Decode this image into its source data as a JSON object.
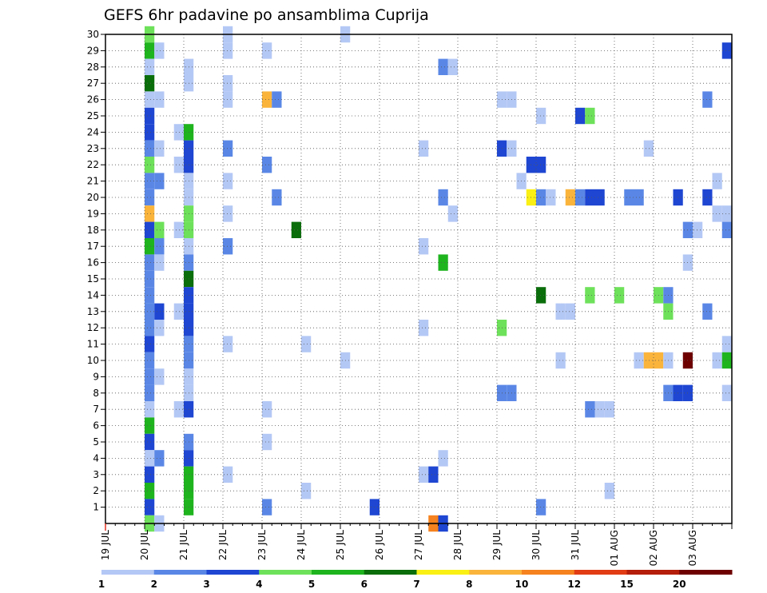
{
  "chart_data": {
    "type": "heatmap",
    "title": "GEFS 6hr padavine po ansamblima Cuprija",
    "x_start": "2021-07-19 00:00",
    "x_step_hours": 6,
    "x_tick_labels": [
      "19 JUL",
      "20 JUL",
      "21 JUL",
      "22 JUL",
      "23 JUL",
      "24 JUL",
      "25 JUL",
      "26 JUL",
      "27 JUL",
      "28 JUL",
      "29 JUL",
      "30 JUL",
      "31 JUL",
      "01 AUG",
      "02 AUG",
      "03 AUG"
    ],
    "y_tick_labels": [
      "1",
      "2",
      "3",
      "4",
      "5",
      "6",
      "7",
      "8",
      "9",
      "10",
      "11",
      "12",
      "13",
      "14",
      "15",
      "16",
      "17",
      "18",
      "19",
      "20",
      "21",
      "22",
      "23",
      "24",
      "25",
      "26",
      "27",
      "28",
      "29",
      "30"
    ],
    "ylim": [
      0,
      30
    ],
    "grid": true,
    "colorbar": {
      "position": "bottom",
      "levels": [
        1,
        2,
        3,
        4,
        5,
        6,
        7,
        8,
        10,
        12,
        15,
        20
      ],
      "labels": [
        "1",
        "2",
        "3",
        "4",
        "5",
        "6",
        "7",
        "8",
        "10",
        "12",
        "15",
        "20"
      ],
      "colors": [
        "#b4c8f5",
        "#5a87e6",
        "#1e46d2",
        "#6ee15a",
        "#1eb41e",
        "#0a6e0a",
        "#faf014",
        "#fab43c",
        "#f5821e",
        "#e13c14",
        "#b41e0a",
        "#6e0000"
      ]
    },
    "series_note": "cells: [time_index_from_x_start (6h steps), ensemble_member, color_class_index]",
    "cells": [
      [
        4,
        30,
        3
      ],
      [
        4,
        29,
        4
      ],
      [
        4,
        28,
        0
      ],
      [
        4,
        27,
        5
      ],
      [
        4,
        26,
        0
      ],
      [
        4,
        25,
        2
      ],
      [
        4,
        24,
        2
      ],
      [
        4,
        23,
        1
      ],
      [
        4,
        22,
        3
      ],
      [
        4,
        21,
        1
      ],
      [
        4,
        20,
        1
      ],
      [
        4,
        19,
        7
      ],
      [
        4,
        18,
        2
      ],
      [
        4,
        17,
        4
      ],
      [
        4,
        16,
        1
      ],
      [
        4,
        15,
        1
      ],
      [
        4,
        14,
        1
      ],
      [
        4,
        13,
        1
      ],
      [
        4,
        12,
        1
      ],
      [
        4,
        11,
        2
      ],
      [
        4,
        10,
        1
      ],
      [
        4,
        9,
        1
      ],
      [
        4,
        8,
        1
      ],
      [
        4,
        7,
        0
      ],
      [
        4,
        6,
        4
      ],
      [
        4,
        5,
        2
      ],
      [
        4,
        4,
        0
      ],
      [
        4,
        3,
        2
      ],
      [
        4,
        2,
        4
      ],
      [
        4,
        1,
        2
      ],
      [
        4,
        0,
        3
      ],
      [
        5,
        29,
        0
      ],
      [
        5,
        26,
        0
      ],
      [
        5,
        23,
        0
      ],
      [
        5,
        21,
        1
      ],
      [
        5,
        18,
        3
      ],
      [
        5,
        17,
        1
      ],
      [
        5,
        16,
        0
      ],
      [
        5,
        13,
        2
      ],
      [
        5,
        12,
        0
      ],
      [
        5,
        9,
        0
      ],
      [
        5,
        4,
        1
      ],
      [
        5,
        0,
        0
      ],
      [
        7,
        24,
        0
      ],
      [
        7,
        22,
        0
      ],
      [
        7,
        18,
        0
      ],
      [
        7,
        13,
        0
      ],
      [
        7,
        7,
        0
      ],
      [
        8,
        28,
        0
      ],
      [
        8,
        27,
        0
      ],
      [
        8,
        24,
        4
      ],
      [
        8,
        23,
        2
      ],
      [
        8,
        22,
        2
      ],
      [
        8,
        21,
        0
      ],
      [
        8,
        20,
        0
      ],
      [
        8,
        19,
        3
      ],
      [
        8,
        18,
        3
      ],
      [
        8,
        17,
        0
      ],
      [
        8,
        16,
        1
      ],
      [
        8,
        15,
        5
      ],
      [
        8,
        14,
        2
      ],
      [
        8,
        13,
        2
      ],
      [
        8,
        12,
        2
      ],
      [
        8,
        11,
        1
      ],
      [
        8,
        10,
        1
      ],
      [
        8,
        9,
        0
      ],
      [
        8,
        8,
        0
      ],
      [
        8,
        7,
        2
      ],
      [
        8,
        5,
        1
      ],
      [
        8,
        4,
        2
      ],
      [
        8,
        3,
        4
      ],
      [
        8,
        2,
        4
      ],
      [
        8,
        1,
        4
      ],
      [
        12,
        30,
        0
      ],
      [
        12,
        29,
        0
      ],
      [
        12,
        27,
        0
      ],
      [
        12,
        26,
        0
      ],
      [
        12,
        23,
        1
      ],
      [
        12,
        21,
        0
      ],
      [
        12,
        19,
        0
      ],
      [
        12,
        17,
        1
      ],
      [
        12,
        11,
        0
      ],
      [
        12,
        3,
        0
      ],
      [
        16,
        29,
        0
      ],
      [
        16,
        26,
        7
      ],
      [
        16,
        22,
        1
      ],
      [
        16,
        7,
        0
      ],
      [
        16,
        5,
        0
      ],
      [
        16,
        1,
        1
      ],
      [
        17,
        26,
        1
      ],
      [
        17,
        20,
        1
      ],
      [
        19,
        18,
        5
      ],
      [
        20,
        11,
        0
      ],
      [
        20,
        2,
        0
      ],
      [
        24,
        30,
        0
      ],
      [
        24,
        10,
        0
      ],
      [
        27,
        1,
        2
      ],
      [
        32,
        23,
        0
      ],
      [
        32,
        17,
        0
      ],
      [
        32,
        12,
        0
      ],
      [
        32,
        3,
        0
      ],
      [
        33,
        3,
        2
      ],
      [
        33,
        0,
        8
      ],
      [
        34,
        28,
        1
      ],
      [
        34,
        20,
        1
      ],
      [
        34,
        16,
        4
      ],
      [
        34,
        4,
        0
      ],
      [
        34,
        0,
        2
      ],
      [
        35,
        28,
        0
      ],
      [
        35,
        19,
        0
      ],
      [
        40,
        26,
        0
      ],
      [
        40,
        23,
        2
      ],
      [
        40,
        12,
        3
      ],
      [
        40,
        8,
        1
      ],
      [
        41,
        26,
        0
      ],
      [
        41,
        23,
        0
      ],
      [
        41,
        8,
        1
      ],
      [
        42,
        21,
        0
      ],
      [
        43,
        22,
        2
      ],
      [
        43,
        20,
        6
      ],
      [
        44,
        25,
        0
      ],
      [
        44,
        22,
        2
      ],
      [
        44,
        20,
        1
      ],
      [
        44,
        14,
        5
      ],
      [
        44,
        1,
        1
      ],
      [
        45,
        20,
        0
      ],
      [
        46,
        13,
        0
      ],
      [
        46,
        10,
        0
      ],
      [
        47,
        13,
        0
      ],
      [
        47,
        20,
        7
      ],
      [
        48,
        25,
        2
      ],
      [
        48,
        20,
        1
      ],
      [
        49,
        25,
        3
      ],
      [
        49,
        20,
        2
      ],
      [
        49,
        14,
        3
      ],
      [
        49,
        7,
        1
      ],
      [
        50,
        20,
        2
      ],
      [
        50,
        7,
        0
      ],
      [
        51,
        2,
        0
      ],
      [
        51,
        7,
        0
      ],
      [
        52,
        14,
        3
      ],
      [
        53,
        20,
        1
      ],
      [
        54,
        20,
        1
      ],
      [
        54,
        10,
        0
      ],
      [
        55,
        23,
        0
      ],
      [
        55,
        10,
        7
      ],
      [
        56,
        14,
        3
      ],
      [
        56,
        10,
        7
      ],
      [
        57,
        14,
        1
      ],
      [
        57,
        10,
        0
      ],
      [
        57,
        13,
        3
      ],
      [
        57,
        8,
        1
      ],
      [
        58,
        20,
        2
      ],
      [
        58,
        8,
        2
      ],
      [
        59,
        18,
        1
      ],
      [
        59,
        16,
        0
      ],
      [
        59,
        10,
        11
      ],
      [
        59,
        8,
        2
      ],
      [
        60,
        18,
        0
      ],
      [
        61,
        26,
        1
      ],
      [
        61,
        20,
        2
      ],
      [
        61,
        13,
        1
      ],
      [
        62,
        21,
        0
      ],
      [
        62,
        19,
        0
      ],
      [
        62,
        10,
        0
      ],
      [
        63,
        29,
        2
      ],
      [
        63,
        19,
        0
      ],
      [
        63,
        18,
        1
      ],
      [
        63,
        11,
        0
      ],
      [
        63,
        10,
        4
      ],
      [
        63,
        8,
        0
      ]
    ]
  }
}
